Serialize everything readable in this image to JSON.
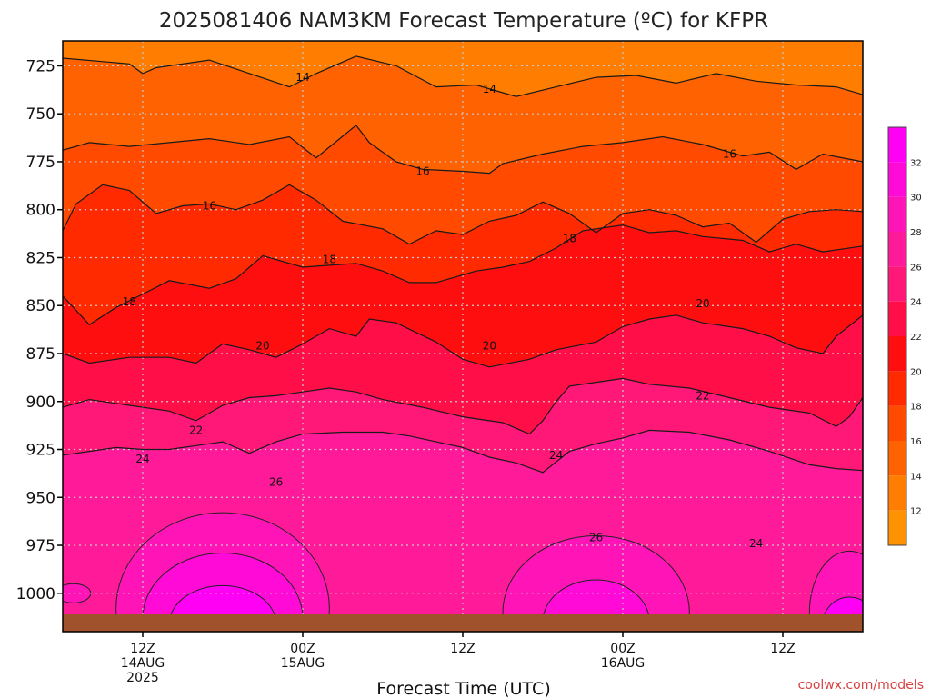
{
  "chart_data": {
    "type": "heatmap",
    "title": "2025081406 NAM3KM Forecast Temperature (ºC) for KFPR",
    "xlabel": "Forecast Time (UTC)",
    "ylabel": "",
    "y_ticks": [
      725,
      750,
      775,
      800,
      825,
      850,
      875,
      900,
      925,
      950,
      975,
      1000
    ],
    "y_range": [
      712,
      1020
    ],
    "x_ticks": [
      {
        "line1": "12Z",
        "line2": "14AUG",
        "line3": "2025"
      },
      {
        "line1": "00Z",
        "line2": "15AUG",
        "line3": ""
      },
      {
        "line1": "12Z",
        "line2": "",
        "line3": ""
      },
      {
        "line1": "00Z",
        "line2": "16AUG",
        "line3": ""
      },
      {
        "line1": "12Z",
        "line2": "",
        "line3": ""
      }
    ],
    "x_tick_hours": [
      6,
      18,
      30,
      42,
      54
    ],
    "x_range": [
      0,
      60
    ],
    "grid": true,
    "colorbar_ticks": [
      12,
      14,
      16,
      18,
      20,
      22,
      24,
      26,
      28,
      30,
      32
    ],
    "colorbar_range": [
      10,
      34
    ],
    "levels": [
      10,
      12,
      14,
      16,
      18,
      20,
      22,
      24,
      26,
      28,
      30,
      32,
      34
    ],
    "level_colors": [
      "#ff9200",
      "#ff7d00",
      "#ff6200",
      "#ff4a00",
      "#ff2a00",
      "#ff0e10",
      "#ff0e48",
      "#ff1877",
      "#ff1a9a",
      "#ff14b8",
      "#ff0ad6",
      "#ff00f5"
    ],
    "ground_color": "#a0522d",
    "grid_color": "#c8c8c8",
    "isotherms": [
      {
        "level": 14,
        "points": [
          [
            0,
            721
          ],
          [
            5,
            724
          ],
          [
            6,
            729
          ],
          [
            7,
            726
          ],
          [
            11,
            722
          ],
          [
            17,
            736
          ],
          [
            19,
            729
          ],
          [
            22,
            720
          ],
          [
            25,
            725
          ],
          [
            28,
            736
          ],
          [
            31,
            735
          ],
          [
            34,
            741
          ],
          [
            37,
            736
          ],
          [
            40,
            731
          ],
          [
            43,
            730
          ],
          [
            46,
            734
          ],
          [
            49,
            729
          ],
          [
            52,
            733
          ],
          [
            55,
            735
          ],
          [
            58,
            736
          ],
          [
            60,
            740
          ]
        ]
      },
      {
        "level": 16,
        "points": [
          [
            0,
            769
          ],
          [
            2,
            765
          ],
          [
            5,
            767
          ],
          [
            8,
            765
          ],
          [
            11,
            763
          ],
          [
            14,
            766
          ],
          [
            17,
            762
          ],
          [
            19,
            773
          ],
          [
            22,
            756
          ],
          [
            23,
            765
          ],
          [
            25,
            775
          ],
          [
            27,
            779
          ],
          [
            30,
            780
          ],
          [
            32,
            781
          ],
          [
            33,
            776
          ],
          [
            36,
            771
          ],
          [
            39,
            767
          ],
          [
            42,
            765
          ],
          [
            45,
            762
          ],
          [
            48,
            766
          ],
          [
            51,
            772
          ],
          [
            53,
            770
          ],
          [
            55,
            779
          ],
          [
            57,
            771
          ],
          [
            60,
            775
          ]
        ]
      },
      {
        "level": 18,
        "points": [
          [
            0,
            811
          ],
          [
            1,
            797
          ],
          [
            3,
            787
          ],
          [
            5,
            790
          ],
          [
            7,
            802
          ],
          [
            9,
            798
          ],
          [
            11,
            797
          ],
          [
            13,
            800
          ],
          [
            15,
            795
          ],
          [
            17,
            787
          ],
          [
            19,
            795
          ],
          [
            21,
            806
          ],
          [
            24,
            810
          ],
          [
            26,
            818
          ],
          [
            28,
            811
          ],
          [
            30,
            813
          ],
          [
            32,
            806
          ],
          [
            34,
            803
          ],
          [
            36,
            796
          ],
          [
            38,
            802
          ],
          [
            40,
            812
          ],
          [
            42,
            802
          ],
          [
            44,
            800
          ],
          [
            46,
            803
          ],
          [
            48,
            809
          ],
          [
            50,
            807
          ],
          [
            52,
            817
          ],
          [
            54,
            805
          ],
          [
            56,
            801
          ],
          [
            58,
            800
          ],
          [
            60,
            801
          ]
        ]
      },
      {
        "level": 20,
        "points": [
          [
            0,
            845
          ],
          [
            2,
            860
          ],
          [
            4,
            851
          ],
          [
            6,
            844
          ],
          [
            8,
            837
          ],
          [
            11,
            841
          ],
          [
            13,
            836
          ],
          [
            15,
            824
          ],
          [
            18,
            830
          ],
          [
            20,
            829
          ],
          [
            22,
            828
          ],
          [
            24,
            832
          ],
          [
            26,
            838
          ],
          [
            28,
            838
          ],
          [
            31,
            832
          ],
          [
            33,
            830
          ],
          [
            35,
            827
          ],
          [
            37,
            820
          ],
          [
            39,
            811
          ],
          [
            42,
            808
          ],
          [
            44,
            812
          ],
          [
            46,
            811
          ],
          [
            48,
            814
          ],
          [
            51,
            816
          ],
          [
            53,
            822
          ],
          [
            55,
            818
          ],
          [
            57,
            822
          ],
          [
            60,
            819
          ]
        ]
      },
      {
        "level": 22,
        "points": [
          [
            0,
            875
          ],
          [
            2,
            880
          ],
          [
            5,
            877
          ],
          [
            8,
            877
          ],
          [
            10,
            880
          ],
          [
            12,
            870
          ],
          [
            14,
            873
          ],
          [
            16,
            877
          ],
          [
            18,
            870
          ],
          [
            20,
            862
          ],
          [
            22,
            866
          ],
          [
            23,
            857
          ],
          [
            25,
            859
          ],
          [
            28,
            869
          ],
          [
            30,
            878
          ],
          [
            32,
            882
          ],
          [
            35,
            878
          ],
          [
            37,
            873
          ],
          [
            40,
            869
          ],
          [
            42,
            861
          ],
          [
            44,
            857
          ],
          [
            46,
            855
          ],
          [
            48,
            859
          ],
          [
            51,
            862
          ],
          [
            53,
            866
          ],
          [
            55,
            872
          ],
          [
            57,
            875
          ],
          [
            58,
            866
          ],
          [
            60,
            855
          ]
        ]
      },
      {
        "level": 24,
        "points": [
          [
            0,
            903
          ],
          [
            2,
            899
          ],
          [
            5,
            902
          ],
          [
            8,
            905
          ],
          [
            10,
            910
          ],
          [
            12,
            902
          ],
          [
            14,
            898
          ],
          [
            16,
            897
          ],
          [
            18,
            895
          ],
          [
            20,
            893
          ],
          [
            22,
            895
          ],
          [
            24,
            899
          ],
          [
            27,
            903
          ],
          [
            30,
            908
          ],
          [
            33,
            911
          ],
          [
            35,
            917
          ],
          [
            36,
            910
          ],
          [
            37,
            900
          ],
          [
            38,
            892
          ],
          [
            40,
            890
          ],
          [
            42,
            888
          ],
          [
            44,
            891
          ],
          [
            47,
            893
          ],
          [
            50,
            898
          ],
          [
            53,
            903
          ],
          [
            56,
            906
          ],
          [
            58,
            913
          ],
          [
            59,
            908
          ],
          [
            60,
            898
          ]
        ]
      },
      {
        "level": 26,
        "points": [
          [
            0,
            928
          ],
          [
            2,
            926
          ],
          [
            4,
            924
          ],
          [
            6,
            925
          ],
          [
            8,
            925
          ],
          [
            10,
            923
          ],
          [
            12,
            921
          ],
          [
            14,
            927
          ],
          [
            16,
            921
          ],
          [
            18,
            917
          ],
          [
            21,
            916
          ],
          [
            24,
            916
          ],
          [
            26,
            918
          ],
          [
            28,
            921
          ],
          [
            30,
            924
          ],
          [
            32,
            929
          ],
          [
            34,
            932
          ],
          [
            36,
            937
          ],
          [
            38,
            926
          ],
          [
            40,
            922
          ],
          [
            42,
            919
          ],
          [
            44,
            915
          ],
          [
            47,
            916
          ],
          [
            50,
            920
          ],
          [
            53,
            926
          ],
          [
            56,
            933
          ],
          [
            58,
            935
          ],
          [
            60,
            936
          ]
        ]
      }
    ],
    "isotherm_labels": [
      {
        "text": "14",
        "x": 18,
        "y": 731
      },
      {
        "text": "14",
        "x": 32,
        "y": 737
      },
      {
        "text": "16",
        "x": 27,
        "y": 780
      },
      {
        "text": "16",
        "x": 50,
        "y": 771
      },
      {
        "text": "16",
        "x": 11,
        "y": 798
      },
      {
        "text": "18",
        "x": 20,
        "y": 826
      },
      {
        "text": "18",
        "x": 38,
        "y": 815
      },
      {
        "text": "18",
        "x": 5,
        "y": 848
      },
      {
        "text": "20",
        "x": 15,
        "y": 871
      },
      {
        "text": "20",
        "x": 32,
        "y": 871
      },
      {
        "text": "20",
        "x": 48,
        "y": 849
      },
      {
        "text": "22",
        "x": 10,
        "y": 915
      },
      {
        "text": "22",
        "x": 48,
        "y": 897
      },
      {
        "text": "24",
        "x": 6,
        "y": 930
      },
      {
        "text": "24",
        "x": 37,
        "y": 928
      },
      {
        "text": "26",
        "x": 16,
        "y": 942
      },
      {
        "text": "26",
        "x": 40,
        "y": 971
      },
      {
        "text": "24",
        "x": 52,
        "y": 974
      }
    ],
    "warm_blobs": [
      {
        "cx": 12,
        "cy": 1008,
        "rx": 8,
        "ry": 50,
        "level": 28
      },
      {
        "cx": 12,
        "cy": 1013,
        "rx": 6,
        "ry": 34,
        "level": 30
      },
      {
        "cx": 12,
        "cy": 1016,
        "rx": 4,
        "ry": 20,
        "level": 32
      },
      {
        "cx": 40,
        "cy": 1010,
        "rx": 7,
        "ry": 40,
        "level": 28
      },
      {
        "cx": 40,
        "cy": 1015,
        "rx": 4,
        "ry": 22,
        "level": 30
      },
      {
        "cx": 59,
        "cy": 1010,
        "rx": 3,
        "ry": 32,
        "level": 28
      },
      {
        "cx": 59,
        "cy": 1016,
        "rx": 2,
        "ry": 14,
        "level": 32
      },
      {
        "cx": 0.8,
        "cy": 1000,
        "rx": 1.3,
        "ry": 5,
        "level": 28
      }
    ]
  },
  "footer": {
    "credit": "coolwx.com/models"
  }
}
